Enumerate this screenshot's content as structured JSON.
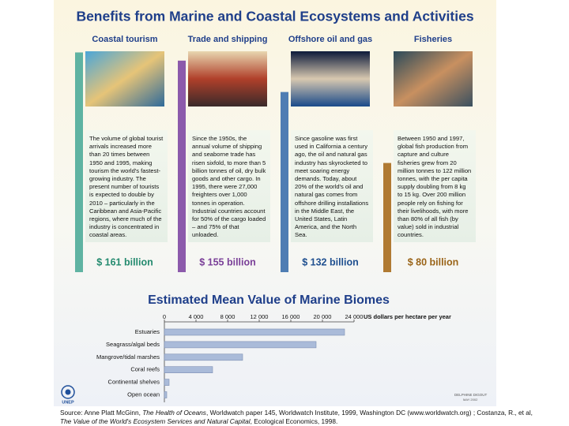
{
  "header": {
    "title": "Benefits from Marine and Coastal Ecosystems and Activities"
  },
  "panels": [
    {
      "heading": "Coastal tourism",
      "color": "#5fb3a2",
      "label_color": "#238a6e",
      "value": 161,
      "value_label": "$ 161 billion",
      "text": "The volume of global tourist arrivals increased more than 20 times between 1950 and 1995, making tourism the world's fastest-growing industry. The present number of tourists is expected to double by 2010 – particularly in the Caribbean and Asia-Pacific regions, where much of the industry is concentrated in coastal areas."
    },
    {
      "heading": "Trade and shipping",
      "color": "#8c5aab",
      "label_color": "#7a3f98",
      "value": 155,
      "value_label": "$ 155 billion",
      "text": "Since the 1950s, the annual volume of shipping and seaborne trade has risen sixfold, to more than 5 billion tonnes of oil, dry bulk goods and other cargo. In 1995, there were 27,000 freighters over 1,000 tonnes in operation. Industrial countries account for 50% of the cargo loaded – and 75% of that unloaded."
    },
    {
      "heading": "Offshore oil and gas",
      "color": "#4f7db3",
      "label_color": "#1f4f8f",
      "value": 132,
      "value_label": "$ 132 billion",
      "text": "Since gasoline was first used in California a century ago, the oil and natural gas industry has skyrocketed to meet soaring energy demands. Today, about 20% of the world's oil and natural gas comes from offshore drilling installations in the Middle East, the United States, Latin America, and the North Sea."
    },
    {
      "heading": "Fisheries",
      "color": "#b07a32",
      "label_color": "#9a6418",
      "value": 80,
      "value_label": "$ 80 billion",
      "text": "Between 1950 and 1997, global fish production from capture and culture fisheries grew from 20 million tonnes to 122 million tonnes, with the per capita supply doubling from 8 kg to 15 kg. Over 200 million people rely on fishing for their livelihoods, with more than 80% of all fish (by value) sold in industrial countries."
    }
  ],
  "chart_data": {
    "type": "bar",
    "orientation": "horizontal",
    "title": "Estimated Mean Value of Marine Biomes",
    "x_label": "US dollars per hectare per year",
    "categories": [
      "Estuaries",
      "Seagrass/algal beds",
      "Mangrove/tidal marshes",
      "Coral reefs",
      "Continental shelves",
      "Open ocean"
    ],
    "values": [
      22800,
      19200,
      9900,
      6100,
      600,
      300
    ],
    "color": "#aabbd9",
    "xlim": [
      0,
      24000
    ],
    "xticks": [
      0,
      {
        "value": 4000,
        "label": "4 000"
      },
      {
        "value": 8000,
        "label": "8 000"
      },
      {
        "value": 12000,
        "label": "12 000"
      },
      {
        "value": 16000,
        "label": "16 000"
      },
      {
        "value": 20000,
        "label": "20 000"
      },
      {
        "value": 24000,
        "label": "24 000"
      }
    ]
  },
  "logo": "UNEP",
  "credit": {
    "author": "DELPHINE DIGOUT",
    "date": "MAY 2002"
  },
  "source": {
    "line1_a": "Source: Anne Platt McGinn, ",
    "line1_b": "The Health of Oceans",
    "line1_c": ", Worldwatch paper 145, Worldwatch Institute, 1999, Washington DC (www.worldwatch.org) ; Costanza, R., et al,",
    "line2_a": "The Value of the World's Ecosystem Services and Natural Capital",
    "line2_b": ", Ecological Economics, 1998."
  }
}
